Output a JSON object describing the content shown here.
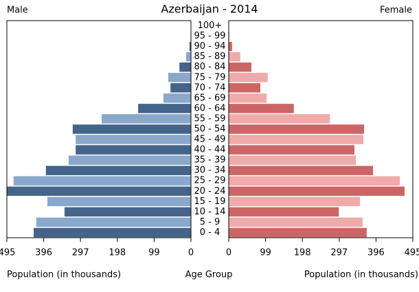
{
  "chart_data": {
    "type": "pyramid",
    "title": "Azerbaijan - 2014",
    "categories": [
      "0 - 4",
      "5 - 9",
      "10 - 14",
      "15 - 19",
      "20 - 24",
      "25 - 29",
      "30 - 34",
      "35 - 39",
      "40 - 44",
      "45 - 49",
      "50 - 54",
      "55 - 59",
      "60 - 64",
      "65 - 69",
      "70 - 74",
      "75 - 79",
      "80 - 84",
      "85 - 89",
      "90 - 94",
      "95 - 99",
      "100+"
    ],
    "series": [
      {
        "name": "Male",
        "colors": [
          "#44648a",
          "#8aa8cc"
        ],
        "values": [
          423,
          416,
          340,
          386,
          495,
          477,
          390,
          329,
          310,
          310,
          318,
          240,
          142,
          74,
          55,
          61,
          31,
          13,
          4,
          1,
          0.3
        ]
      },
      {
        "name": "Female",
        "colors": [
          "#cc6666",
          "#f0aaaa"
        ],
        "values": [
          371,
          360,
          296,
          353,
          473,
          460,
          388,
          342,
          338,
          362,
          364,
          272,
          175,
          102,
          85,
          105,
          61,
          31,
          9,
          2,
          0.5
        ]
      }
    ],
    "xlim": [
      0,
      495
    ],
    "xticks": [
      0,
      99,
      198,
      297,
      396,
      495
    ],
    "xlabel": "Population (in thousands)",
    "category_label": "Age Group"
  }
}
